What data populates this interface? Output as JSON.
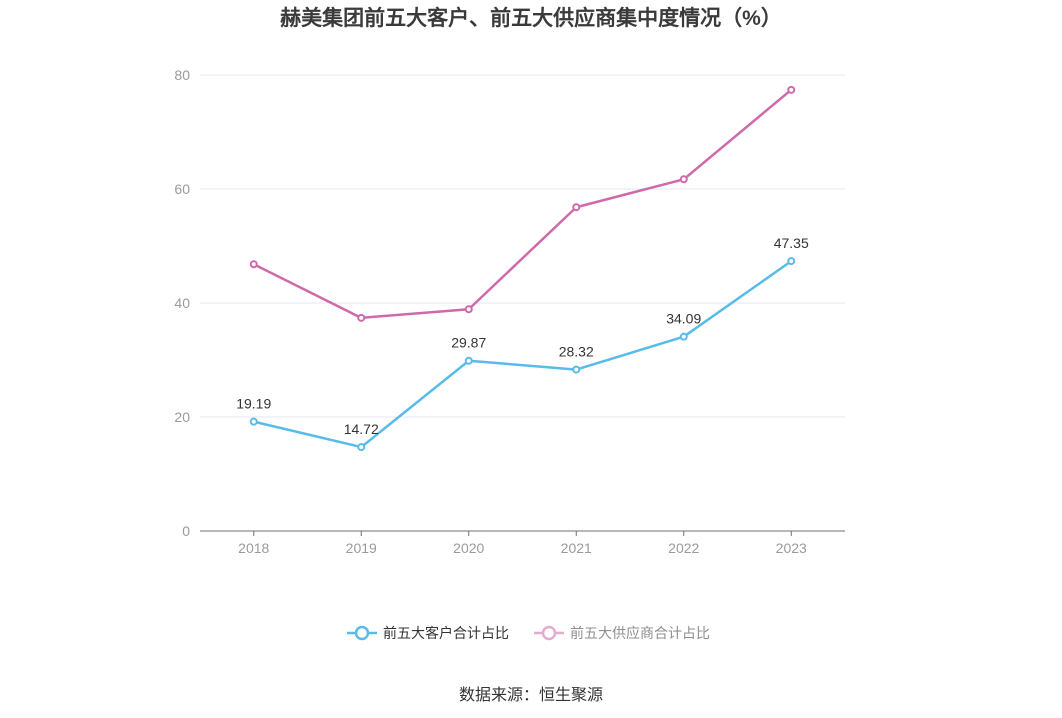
{
  "chart_data": {
    "type": "line",
    "title": "赫美集团前五大客户、前五大供应商集中度情况（%）",
    "categories": [
      "2018",
      "2019",
      "2020",
      "2021",
      "2022",
      "2023"
    ],
    "ylim": [
      0,
      80
    ],
    "yticks": [
      0,
      20,
      40,
      60,
      80
    ],
    "grid": true,
    "legend_position": "bottom",
    "series": [
      {
        "name": "前五大客户合计占比",
        "values": [
          19.19,
          14.72,
          29.87,
          28.32,
          34.09,
          47.35
        ],
        "color": "#58bbea",
        "show_labels": true
      },
      {
        "name": "前五大供应商合计占比",
        "values": [
          46.8,
          37.4,
          38.9,
          56.8,
          61.7,
          77.4
        ],
        "color": "#cf69a9",
        "show_labels": false
      }
    ]
  },
  "source": "数据来源：恒生聚源"
}
